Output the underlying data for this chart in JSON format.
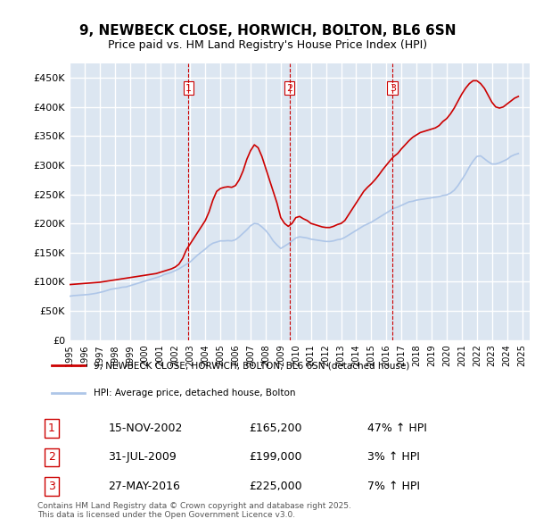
{
  "title": "9, NEWBECK CLOSE, HORWICH, BOLTON, BL6 6SN",
  "subtitle": "Price paid vs. HM Land Registry's House Price Index (HPI)",
  "ylim": [
    0,
    475000
  ],
  "yticks": [
    0,
    50000,
    100000,
    150000,
    200000,
    250000,
    300000,
    350000,
    400000,
    450000
  ],
  "ytick_labels": [
    "£0",
    "£50K",
    "£100K",
    "£150K",
    "£200K",
    "£250K",
    "£300K",
    "£350K",
    "£400K",
    "£450K"
  ],
  "xlim_start": 1995.0,
  "xlim_end": 2025.5,
  "xtick_years": [
    1995,
    1996,
    1997,
    1998,
    1999,
    2000,
    2001,
    2002,
    2003,
    2004,
    2005,
    2006,
    2007,
    2008,
    2009,
    2010,
    2011,
    2012,
    2013,
    2014,
    2015,
    2016,
    2017,
    2018,
    2019,
    2020,
    2021,
    2022,
    2023,
    2024,
    2025
  ],
  "sale_color": "#cc0000",
  "hpi_color": "#aec6e8",
  "vline_color": "#cc0000",
  "background_color": "#dce6f1",
  "plot_bg_color": "#dce6f1",
  "grid_color": "#ffffff",
  "title_fontsize": 11,
  "subtitle_fontsize": 9,
  "legend_label_sale": "9, NEWBECK CLOSE, HORWICH, BOLTON, BL6 6SN (detached house)",
  "legend_label_hpi": "HPI: Average price, detached house, Bolton",
  "transactions": [
    {
      "num": 1,
      "date": "15-NOV-2002",
      "x": 2002.88,
      "price": 165200,
      "pct": "47%",
      "dir": "↑"
    },
    {
      "num": 2,
      "date": "31-JUL-2009",
      "x": 2009.58,
      "price": 199000,
      "pct": "3%",
      "dir": "↑"
    },
    {
      "num": 3,
      "date": "27-MAY-2016",
      "x": 2016.41,
      "price": 225000,
      "pct": "7%",
      "dir": "↑"
    }
  ],
  "footer_text": "Contains HM Land Registry data © Crown copyright and database right 2025.\nThis data is licensed under the Open Government Licence v3.0.",
  "sale_hpi_data": {
    "years": [
      1995.0,
      1995.25,
      1995.5,
      1995.75,
      1996.0,
      1996.25,
      1996.5,
      1996.75,
      1997.0,
      1997.25,
      1997.5,
      1997.75,
      1998.0,
      1998.25,
      1998.5,
      1998.75,
      1999.0,
      1999.25,
      1999.5,
      1999.75,
      2000.0,
      2000.25,
      2000.5,
      2000.75,
      2001.0,
      2001.25,
      2001.5,
      2001.75,
      2002.0,
      2002.25,
      2002.5,
      2002.75,
      2003.0,
      2003.25,
      2003.5,
      2003.75,
      2004.0,
      2004.25,
      2004.5,
      2004.75,
      2005.0,
      2005.25,
      2005.5,
      2005.75,
      2006.0,
      2006.25,
      2006.5,
      2006.75,
      2007.0,
      2007.25,
      2007.5,
      2007.75,
      2008.0,
      2008.25,
      2008.5,
      2008.75,
      2009.0,
      2009.25,
      2009.5,
      2009.75,
      2010.0,
      2010.25,
      2010.5,
      2010.75,
      2011.0,
      2011.25,
      2011.5,
      2011.75,
      2012.0,
      2012.25,
      2012.5,
      2012.75,
      2013.0,
      2013.25,
      2013.5,
      2013.75,
      2014.0,
      2014.25,
      2014.5,
      2014.75,
      2015.0,
      2015.25,
      2015.5,
      2015.75,
      2016.0,
      2016.25,
      2016.5,
      2016.75,
      2017.0,
      2017.25,
      2017.5,
      2017.75,
      2018.0,
      2018.25,
      2018.5,
      2018.75,
      2019.0,
      2019.25,
      2019.5,
      2019.75,
      2020.0,
      2020.25,
      2020.5,
      2020.75,
      2021.0,
      2021.25,
      2021.5,
      2021.75,
      2022.0,
      2022.25,
      2022.5,
      2022.75,
      2023.0,
      2023.25,
      2023.5,
      2023.75,
      2024.0,
      2024.25,
      2024.5,
      2024.75
    ],
    "hpi_values": [
      75000,
      76000,
      76500,
      77000,
      77500,
      78000,
      79000,
      80000,
      81500,
      83000,
      85000,
      87000,
      88000,
      89000,
      90500,
      91000,
      93000,
      95000,
      97000,
      99000,
      101000,
      103000,
      105000,
      107000,
      109000,
      112000,
      114000,
      116000,
      119000,
      122000,
      126000,
      130000,
      134000,
      140000,
      146000,
      151000,
      156000,
      162000,
      166000,
      168000,
      170000,
      170000,
      170500,
      170000,
      172000,
      177000,
      183000,
      189000,
      196000,
      200000,
      199000,
      194000,
      188000,
      180000,
      170000,
      163000,
      157000,
      161000,
      165000,
      170000,
      175000,
      177000,
      176000,
      175000,
      173000,
      172000,
      171000,
      170000,
      169000,
      169000,
      170000,
      172000,
      173000,
      176000,
      180000,
      184000,
      188000,
      192000,
      196000,
      199000,
      202000,
      206000,
      210000,
      214000,
      218000,
      222000,
      226000,
      228000,
      231000,
      234000,
      237000,
      238000,
      240000,
      241000,
      242000,
      243000,
      244000,
      245000,
      246000,
      248000,
      249000,
      252000,
      257000,
      265000,
      275000,
      285000,
      297000,
      307000,
      315000,
      316000,
      311000,
      306000,
      302000,
      302000,
      304000,
      307000,
      310000,
      315000,
      318000,
      320000
    ],
    "sale_values": [
      95000,
      95500,
      96000,
      96500,
      97000,
      97500,
      98000,
      98500,
      99000,
      100000,
      101000,
      102000,
      103000,
      104000,
      105000,
      106000,
      107000,
      108000,
      109000,
      110000,
      111000,
      112000,
      113000,
      114000,
      116000,
      118000,
      120000,
      122000,
      125000,
      130000,
      140000,
      155000,
      165000,
      175000,
      185000,
      195000,
      205000,
      220000,
      240000,
      255000,
      260000,
      262000,
      263000,
      262000,
      265000,
      275000,
      290000,
      310000,
      325000,
      335000,
      330000,
      315000,
      295000,
      275000,
      255000,
      235000,
      210000,
      200000,
      195000,
      200000,
      210000,
      212000,
      208000,
      205000,
      200000,
      198000,
      196000,
      194000,
      193000,
      193000,
      195000,
      198000,
      200000,
      205000,
      215000,
      225000,
      235000,
      245000,
      255000,
      262000,
      268000,
      275000,
      283000,
      292000,
      300000,
      308000,
      315000,
      320000,
      328000,
      335000,
      342000,
      348000,
      352000,
      356000,
      358000,
      360000,
      362000,
      364000,
      368000,
      375000,
      380000,
      388000,
      398000,
      410000,
      422000,
      432000,
      440000,
      445000,
      445000,
      440000,
      432000,
      420000,
      408000,
      400000,
      398000,
      400000,
      405000,
      410000,
      415000,
      418000
    ]
  }
}
